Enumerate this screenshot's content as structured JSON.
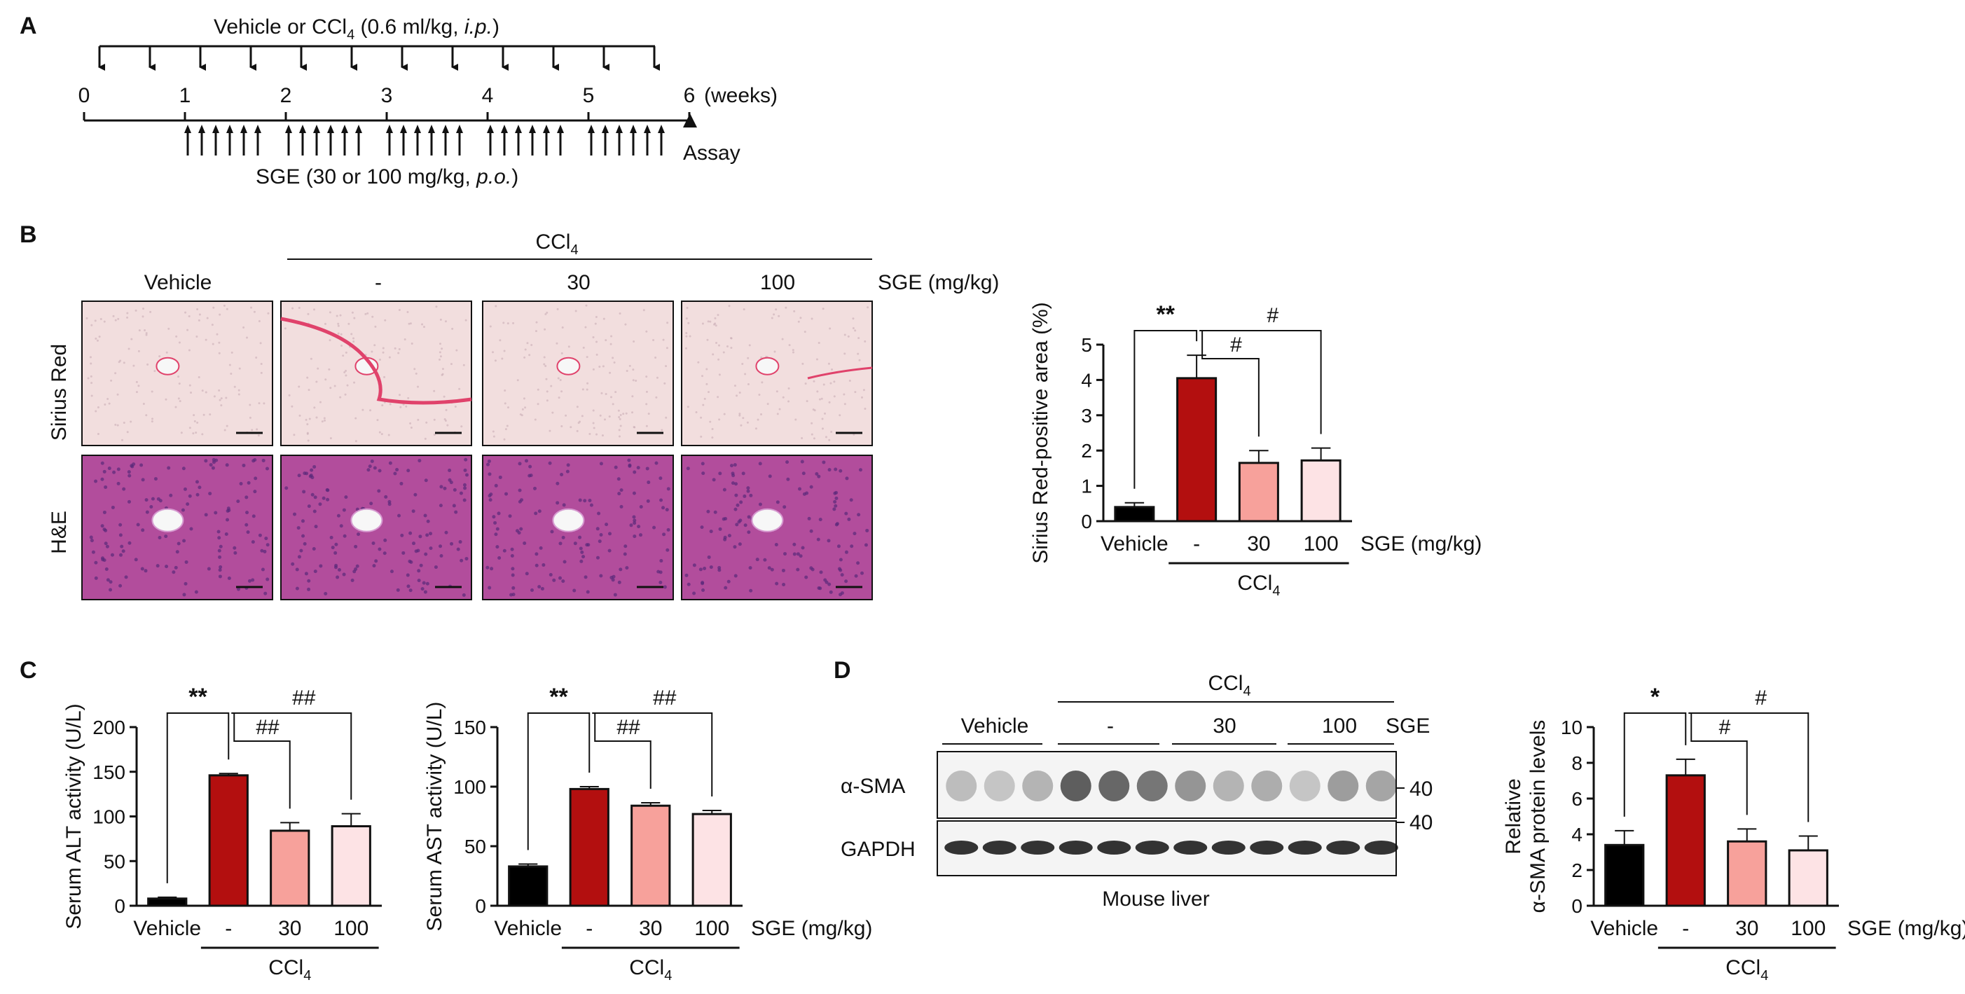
{
  "panel_letters": [
    "A",
    "B",
    "C",
    "D"
  ],
  "timeline": {
    "top_label": "Vehicle or CCl",
    "top_label_sub": "4",
    "top_label_dose": " (0.6 ml/kg, ",
    "top_label_route": "i.p.",
    "top_label_end": ")",
    "week_ticks": [
      "0",
      "1",
      "2",
      "3",
      "4",
      "5",
      "6"
    ],
    "weeks_unit": "(weeks)",
    "bottom_label": "SGE (30 or 100 mg/kg, ",
    "bottom_label_route": "p.o.",
    "bottom_label_end": ")",
    "assay_label": "Assay"
  },
  "histology": {
    "ccl4_header": "CCl",
    "ccl4_sub": "4",
    "columns": [
      "Vehicle",
      "-",
      "30",
      "100"
    ],
    "sge_label": "SGE (mg/kg)",
    "rows": [
      "Sirius Red",
      "H&E"
    ],
    "colors": {
      "sirius_bg": "#f2dede",
      "sirius_fiber": "#e0426b",
      "he_bg": "#b24d9c",
      "he_dark": "#5a2a7a"
    }
  },
  "chart_data": [
    {
      "id": "sirius",
      "type": "bar",
      "categories": [
        "Vehicle",
        "-",
        "30",
        "100"
      ],
      "values": [
        0.4,
        4.05,
        1.65,
        1.72
      ],
      "errors": [
        0.12,
        0.65,
        0.35,
        0.35
      ],
      "ylabel": "Sirius Red-positive area (%)",
      "yticks": [
        "0",
        "1",
        "2",
        "3",
        "4",
        "5"
      ],
      "ylim": [
        0,
        5
      ],
      "group_label": "CCl",
      "group_sub": "4",
      "x_suffix": "SGE (mg/kg)",
      "sig": [
        "**",
        "#",
        "#"
      ],
      "colors": [
        "#000000",
        "#b30f0f",
        "#f7a19b",
        "#fde3e5"
      ]
    },
    {
      "id": "alt",
      "type": "bar",
      "categories": [
        "Vehicle",
        "-",
        "30",
        "100"
      ],
      "values": [
        8,
        146,
        84,
        89
      ],
      "errors": [
        1.5,
        2,
        9,
        14
      ],
      "ylabel": "Serum ALT activity (U/L)",
      "yticks": [
        "0",
        "50",
        "100",
        "150",
        "200"
      ],
      "ylim": [
        0,
        200
      ],
      "group_label": "CCl",
      "group_sub": "4",
      "x_suffix": "",
      "sig": [
        "**",
        "##",
        "##"
      ],
      "colors": [
        "#000000",
        "#b30f0f",
        "#f7a19b",
        "#fde3e5"
      ]
    },
    {
      "id": "ast",
      "type": "bar",
      "categories": [
        "Vehicle",
        "-",
        "30",
        "100"
      ],
      "values": [
        33,
        98,
        84,
        77
      ],
      "errors": [
        2,
        2,
        2.5,
        3
      ],
      "ylabel": "Serum AST activity (U/L)",
      "yticks": [
        "0",
        "50",
        "100",
        "150"
      ],
      "ylim": [
        0,
        150
      ],
      "group_label": "CCl",
      "group_sub": "4",
      "x_suffix": "SGE (mg/kg)",
      "sig": [
        "**",
        "##",
        "##"
      ],
      "colors": [
        "#000000",
        "#b30f0f",
        "#f7a19b",
        "#fde3e5"
      ]
    },
    {
      "id": "sma",
      "type": "bar",
      "categories": [
        "Vehicle",
        "-",
        "30",
        "100"
      ],
      "values": [
        3.4,
        7.3,
        3.6,
        3.1
      ],
      "errors": [
        0.8,
        0.9,
        0.7,
        0.8
      ],
      "ylabel": "Relative",
      "ylabel2": "α-SMA protein levels",
      "yticks": [
        "0",
        "2",
        "4",
        "6",
        "8",
        "10"
      ],
      "ylim": [
        0,
        10
      ],
      "group_label": "CCl",
      "group_sub": "4",
      "x_suffix": "SGE (mg/kg)",
      "sig": [
        "*",
        "#",
        "#"
      ],
      "colors": [
        "#000000",
        "#b30f0f",
        "#f7a19b",
        "#fde3e5"
      ]
    }
  ],
  "western": {
    "ccl4_header": "CCl",
    "ccl4_sub": "4",
    "groups": [
      "Vehicle",
      "-",
      "30",
      "100"
    ],
    "sge_label": "SGE",
    "bands": [
      "α-SMA",
      "GAPDH"
    ],
    "marker": "40",
    "caption": "Mouse liver"
  }
}
